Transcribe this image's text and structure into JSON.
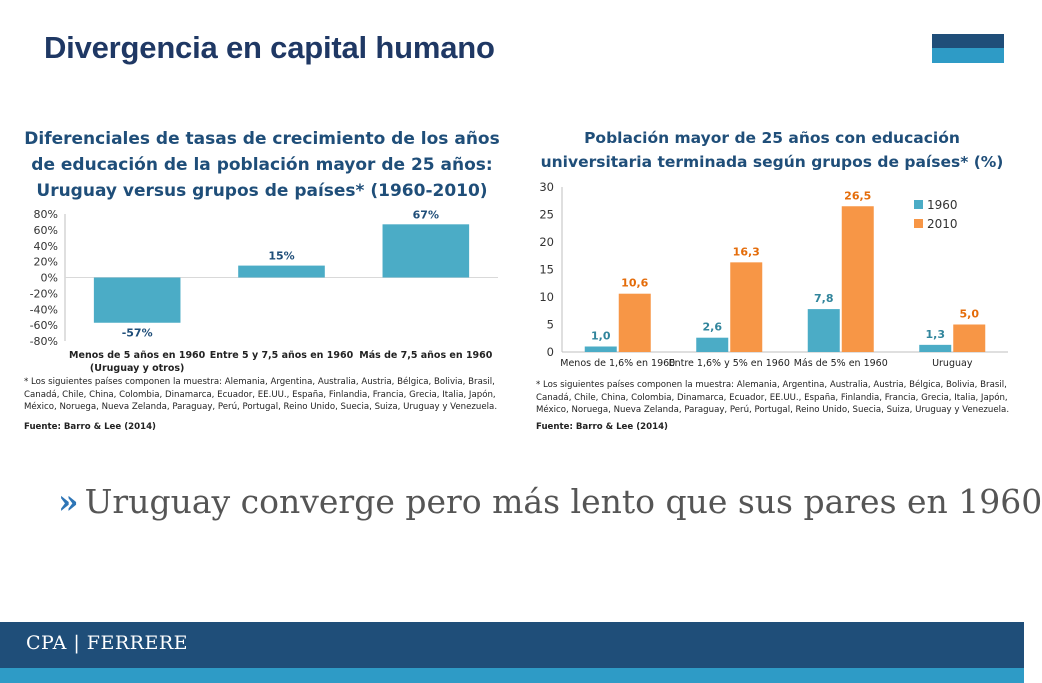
{
  "slide": {
    "title": "Divergencia en capital humano",
    "bullet_marker": "»",
    "bullet_text": "Uruguay converge pero más lento que sus pares en 1960",
    "footer_logo": "CPA | FERRERE",
    "colors": {
      "title": "#1f3864",
      "series_1960": "#4bacc6",
      "series_2010": "#f79646",
      "footer": "#1f4e79",
      "footer_strip": "#2e9bc6"
    }
  },
  "chart_data": [
    {
      "type": "bar",
      "title": "Diferenciales de tasas de crecimiento de los años de educación de la población mayor de 25 años: Uruguay versus grupos de países* (1960-2010)",
      "categories": [
        [
          "Menos de 5 años en 1960",
          "(Uruguay y otros)"
        ],
        [
          "Entre 5 y 7,5 años en 1960"
        ],
        [
          "Más de 7,5 años en 1960"
        ]
      ],
      "values": [
        -57,
        15,
        67
      ],
      "data_labels": [
        "-57%",
        "15%",
        "67%"
      ],
      "y_ticks": [
        "80%",
        "60%",
        "40%",
        "20%",
        "0%",
        "-20%",
        "-40%",
        "-60%",
        "-80%"
      ],
      "ylim": [
        -80,
        80
      ],
      "grid": false,
      "note": "* Los siguientes países componen la muestra: Alemania, Argentina, Australia, Austria, Bélgica, Bolivia, Brasil, Canadá, Chile, China, Colombia, Dinamarca, Ecuador, EE.UU., España, Finlandia, Francia, Grecia, Italia, Japón, México, Noruega, Nueva Zelanda, Paraguay, Perú, Portugal, Reino Unido, Suecia, Suiza, Uruguay y Venezuela.",
      "source": "Fuente: Barro & Lee (2014)"
    },
    {
      "type": "bar",
      "title": "Población mayor de 25 años con educación universitaria terminada según grupos de países* (%)",
      "categories": [
        "Menos de 1,6% en 1960",
        "Entre 1,6% y 5% en 1960",
        "Más de 5% en 1960",
        "Uruguay"
      ],
      "series": [
        {
          "name": "1960",
          "values": [
            1.0,
            2.6,
            7.8,
            1.3
          ],
          "labels": [
            "1,0",
            "2,6",
            "7,8",
            "1,3"
          ]
        },
        {
          "name": "2010",
          "values": [
            10.6,
            16.3,
            26.5,
            5.0
          ],
          "labels": [
            "10,6",
            "16,3",
            "26,5",
            "5,0"
          ]
        }
      ],
      "y_ticks": [
        "30",
        "25",
        "20",
        "15",
        "10",
        "5",
        "0"
      ],
      "ylim": [
        0,
        30
      ],
      "legend": "top-right",
      "grid": false,
      "note": "* Los siguientes países componen la muestra: Alemania, Argentina, Australia, Austria, Bélgica, Bolivia, Brasil, Canadá, Chile, China, Colombia, Dinamarca, Ecuador, EE.UU., España, Finlandia, Francia, Grecia, Italia, Japón, México, Noruega, Nueva Zelanda, Paraguay, Perú, Portugal, Reino Unido, Suecia, Suiza, Uruguay y Venezuela.",
      "source": "Fuente: Barro & Lee (2014)"
    }
  ]
}
